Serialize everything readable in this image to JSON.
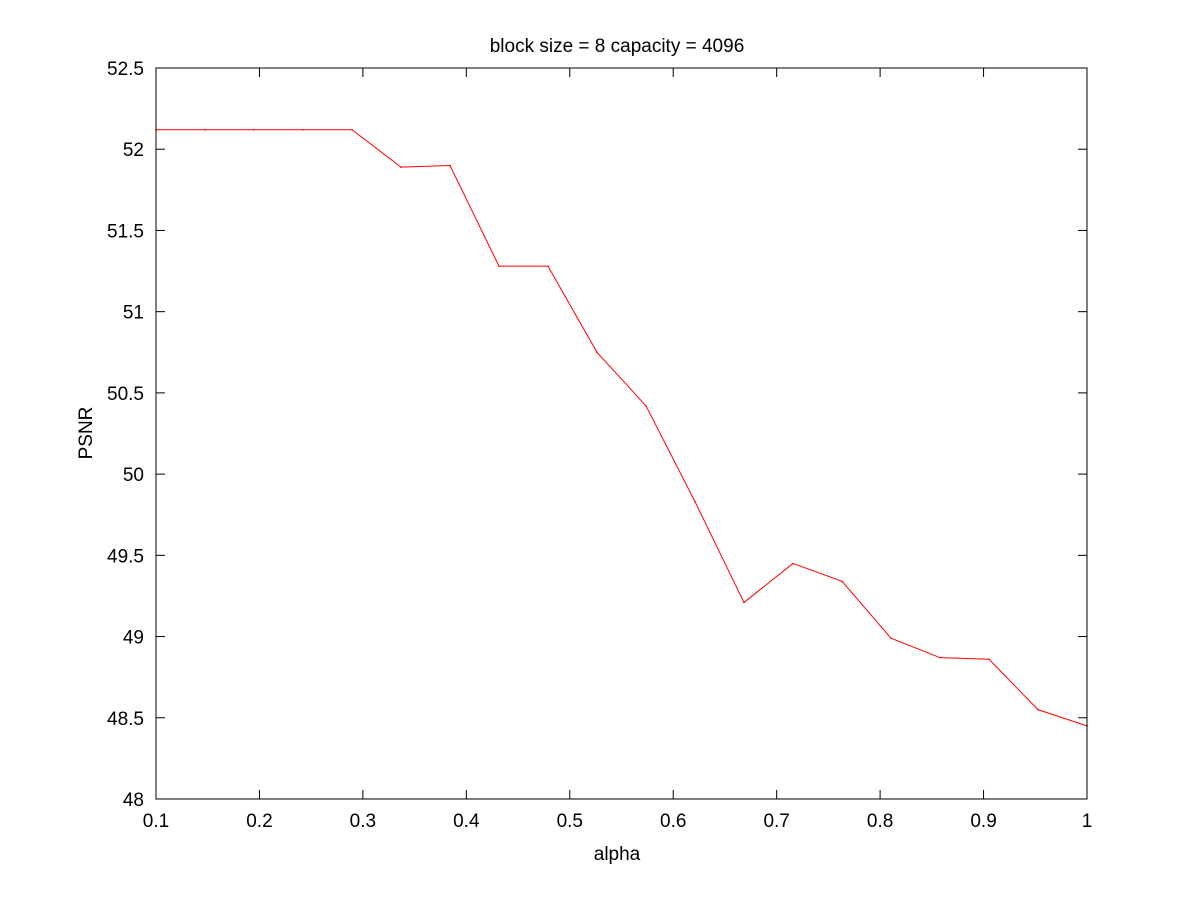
{
  "chart_data": {
    "type": "line",
    "title": "block size = 8  capacity = 4096",
    "xlabel": "alpha",
    "ylabel": "PSNR",
    "xlim": [
      0.1,
      1
    ],
    "ylim": [
      48,
      52.5
    ],
    "xticks": [
      0.1,
      0.2,
      0.3,
      0.4,
      0.5,
      0.6,
      0.7,
      0.8,
      0.9,
      1
    ],
    "xtick_labels": [
      "0.1",
      "0.2",
      "0.3",
      "0.4",
      "0.5",
      "0.6",
      "0.7",
      "0.8",
      "0.9",
      "1"
    ],
    "yticks": [
      48,
      48.5,
      49,
      49.5,
      50,
      50.5,
      51,
      51.5,
      52,
      52.5
    ],
    "ytick_labels": [
      "48",
      "48.5",
      "49",
      "49.5",
      "50",
      "50.5",
      "51",
      "51.5",
      "52",
      "52.5"
    ],
    "grid": false,
    "series": [
      {
        "color": "#ff0000",
        "x": [
          0.1,
          0.1474,
          0.1947,
          0.2421,
          0.2895,
          0.3368,
          0.3842,
          0.4316,
          0.4789,
          0.5263,
          0.5737,
          0.6211,
          0.6684,
          0.7158,
          0.7632,
          0.8105,
          0.8579,
          0.9053,
          0.9526,
          1.0
        ],
        "y": [
          52.12,
          52.12,
          52.12,
          52.12,
          52.12,
          51.89,
          51.9,
          51.28,
          51.28,
          50.75,
          50.42,
          49.83,
          49.21,
          49.45,
          49.34,
          48.99,
          48.87,
          48.86,
          48.55,
          48.45
        ]
      }
    ]
  }
}
